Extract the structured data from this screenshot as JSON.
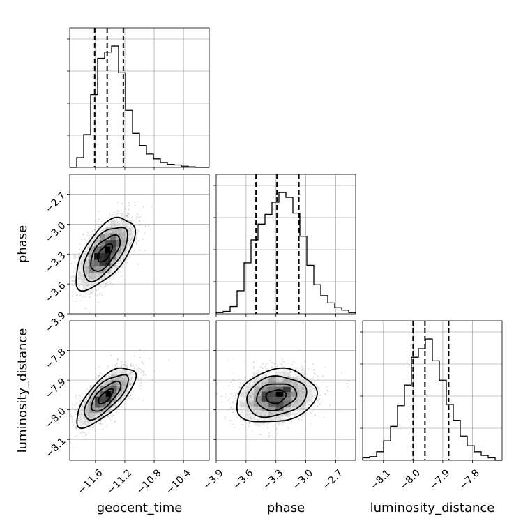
{
  "chart_data": {
    "type": "corner",
    "parameters": [
      "geocent_time",
      "phase",
      "luminosity_distance"
    ],
    "axis_labels": {
      "geocent_time": "geocent_time",
      "phase": "phase",
      "luminosity_distance": "luminosity_distance"
    },
    "ranges": {
      "geocent_time": [
        -11.95,
        -10.05
      ],
      "phase": [
        -3.9,
        -2.5
      ],
      "luminosity_distance": [
        -8.17,
        -7.7
      ]
    },
    "ticks": {
      "geocent_time": [
        -11.6,
        -11.2,
        -10.8,
        -10.4
      ],
      "phase": [
        -3.9,
        -3.6,
        -3.3,
        -3.0,
        -2.7
      ],
      "luminosity_distance": [
        -8.1,
        -8.0,
        -7.9,
        -7.8
      ]
    },
    "tick_labels": {
      "geocent_time": [
        "−11.6",
        "−11.2",
        "−10.8",
        "−10.4"
      ],
      "phase": [
        "−3.9",
        "−3.6",
        "−3.3",
        "−3.0",
        "−2.7"
      ],
      "luminosity_distance": [
        "−8.1",
        "−8.0",
        "−7.9",
        "−7.8"
      ]
    },
    "quantiles": {
      "geocent_time": [
        -11.61,
        -11.44,
        -11.22
      ],
      "phase": [
        -3.5,
        -3.29,
        -3.07
      ],
      "luminosity_distance": [
        -8.0,
        -7.96,
        -7.88
      ]
    },
    "histograms": {
      "geocent_time": {
        "bin_edges": [
          -11.95,
          -11.855,
          -11.76,
          -11.665,
          -11.57,
          -11.475,
          -11.38,
          -11.285,
          -11.19,
          -11.095,
          -11.0,
          -10.905,
          -10.81,
          -10.715,
          -10.62,
          -10.525,
          -10.43,
          -10.335,
          -10.24,
          -10.145,
          -10.05
        ],
        "counts": [
          0.0,
          0.08,
          0.27,
          0.6,
          0.9,
          0.95,
          1.0,
          0.78,
          0.47,
          0.28,
          0.18,
          0.11,
          0.07,
          0.04,
          0.025,
          0.02,
          0.01,
          0.005,
          0.0,
          0.0
        ]
      },
      "phase": {
        "bin_edges": [
          -3.9,
          -3.83,
          -3.76,
          -3.69,
          -3.62,
          -3.55,
          -3.48,
          -3.41,
          -3.34,
          -3.27,
          -3.2,
          -3.13,
          -3.06,
          -2.99,
          -2.92,
          -2.85,
          -2.78,
          -2.71,
          -2.64,
          -2.57,
          -2.5
        ],
        "counts": [
          0.01,
          0.02,
          0.06,
          0.19,
          0.42,
          0.61,
          0.74,
          0.82,
          0.92,
          1.0,
          0.96,
          0.83,
          0.64,
          0.4,
          0.24,
          0.15,
          0.09,
          0.05,
          0.03,
          0.01
        ]
      },
      "luminosity_distance": {
        "bin_edges": [
          -8.17,
          -8.1465,
          -8.123,
          -8.0995,
          -8.076,
          -8.0525,
          -8.029,
          -8.0055,
          -7.982,
          -7.9585,
          -7.935,
          -7.9115,
          -7.888,
          -7.8645,
          -7.841,
          -7.8175,
          -7.794,
          -7.7705,
          -7.747,
          -7.7235,
          -7.7
        ],
        "counts": [
          0.02,
          0.03,
          0.07,
          0.16,
          0.28,
          0.45,
          0.62,
          0.85,
          0.92,
          1.0,
          0.82,
          0.66,
          0.46,
          0.33,
          0.2,
          0.12,
          0.07,
          0.04,
          0.02,
          0.0
        ]
      }
    },
    "joint": [
      {
        "x": "geocent_time",
        "y": "phase",
        "mean": [
          -11.47,
          -3.29
        ],
        "std": [
          0.2,
          0.18
        ],
        "corr": 0.62,
        "contour_levels_sigma": [
          0.5,
          1.0,
          1.5,
          2.0
        ]
      },
      {
        "x": "geocent_time",
        "y": "luminosity_distance",
        "mean": [
          -11.46,
          -7.955
        ],
        "std": [
          0.2,
          0.05
        ],
        "corr": 0.72,
        "contour_levels_sigma": [
          0.5,
          1.0,
          1.5,
          2.0
        ]
      },
      {
        "x": "phase",
        "y": "luminosity_distance",
        "mean": [
          -3.3,
          -7.955
        ],
        "std": [
          0.2,
          0.045
        ],
        "corr": 0.18,
        "contour_levels_sigma": [
          0.5,
          1.0,
          1.5,
          2.0
        ]
      }
    ],
    "grid": true
  }
}
